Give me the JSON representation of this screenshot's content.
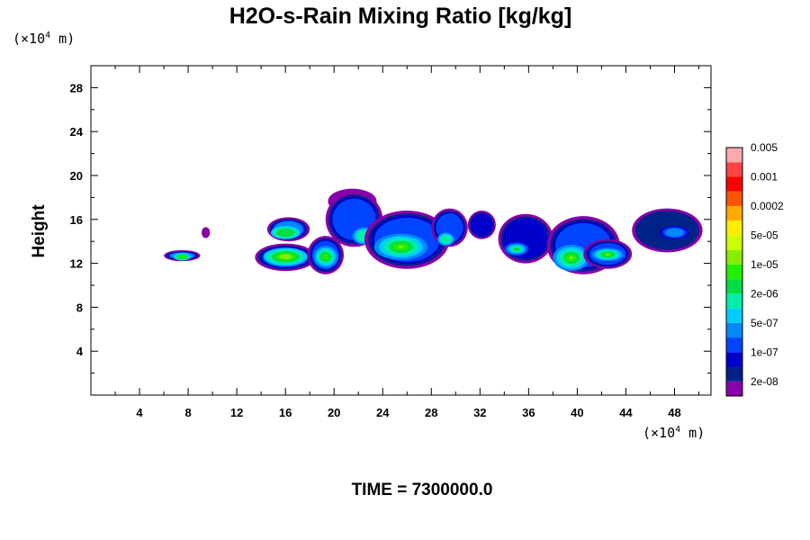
{
  "chart_data": {
    "type": "heatmap",
    "title": "H2O-s-Rain Mixing Ratio [kg/kg]",
    "ylabel": "Height",
    "x_units": "(×10⁴ m)",
    "y_units": "(×10⁴ m)",
    "x_unit_parts": {
      "prefix": "(×10",
      "exp": "4",
      "suffix": " m)"
    },
    "y_unit_parts": {
      "prefix": "(×10",
      "exp": "4",
      "suffix": " m)"
    },
    "xlim": [
      0,
      51
    ],
    "ylim": [
      0,
      30
    ],
    "x_ticks": [
      4,
      8,
      12,
      16,
      20,
      24,
      28,
      32,
      36,
      40,
      44,
      48
    ],
    "x_tick_labels": [
      "4",
      "8",
      "12",
      "16",
      "20",
      "24",
      "28",
      "32",
      "36",
      "40",
      "44",
      "48"
    ],
    "y_ticks": [
      4,
      8,
      12,
      16,
      20,
      24,
      28
    ],
    "y_tick_labels": [
      "4",
      "8",
      "12",
      "16",
      "20",
      "24",
      "28"
    ],
    "colorbar": {
      "colors": [
        "#8800aa",
        "#002288",
        "#0000cc",
        "#0044ff",
        "#0088ff",
        "#00ccff",
        "#00eeaa",
        "#00dd44",
        "#22ee00",
        "#88ee00",
        "#ccff00",
        "#ffee00",
        "#ffaa00",
        "#ff5500",
        "#ff0000",
        "#ff4444",
        "#ffaaaa"
      ],
      "labels": [
        "2e-08",
        "1e-07",
        "5e-07",
        "2e-06",
        "1e-05",
        "5e-05",
        "0.0002",
        "0.001",
        "0.005"
      ]
    },
    "cells": [
      {
        "x0": 6,
        "x1": 9,
        "y0": 12.2,
        "y1": 13.2,
        "level": 4,
        "core": [
          7.5,
          12.6,
          0.7,
          0.35,
          8
        ]
      },
      {
        "x0": 9.1,
        "x1": 9.8,
        "y0": 14.3,
        "y1": 15.3,
        "level": 0
      },
      {
        "x0": 14.5,
        "x1": 18,
        "y0": 14,
        "y1": 16.2,
        "level": 4,
        "core": [
          16,
          14.8,
          1.2,
          0.6,
          7
        ]
      },
      {
        "x0": 13.5,
        "x1": 18.5,
        "y0": 11.3,
        "y1": 13.8,
        "level": 4,
        "core": [
          16,
          12.6,
          1.8,
          0.8,
          9
        ]
      },
      {
        "x0": 17.8,
        "x1": 20.8,
        "y0": 11,
        "y1": 14.5,
        "level": 3,
        "core": [
          19.3,
          12.6,
          1.0,
          1.0,
          8
        ]
      },
      {
        "x0": 19.5,
        "x1": 23.5,
        "y0": 16.5,
        "y1": 18.8,
        "level": 0
      },
      {
        "x0": 19.3,
        "x1": 24,
        "y0": 13.5,
        "y1": 18.5,
        "level": 3,
        "core": [
          22.5,
          14.5,
          1.0,
          0.8,
          6
        ]
      },
      {
        "x0": 22.5,
        "x1": 29.5,
        "y0": 11.5,
        "y1": 16.8,
        "level": 3,
        "core": [
          25.5,
          13.5,
          2.2,
          1.2,
          9
        ]
      },
      {
        "x0": 28,
        "x1": 31,
        "y0": 13.5,
        "y1": 17,
        "level": 3,
        "core": [
          29.2,
          14.2,
          0.7,
          0.6,
          6
        ]
      },
      {
        "x0": 31,
        "x1": 33.3,
        "y0": 14.2,
        "y1": 16.8,
        "level": 2
      },
      {
        "x0": 33.5,
        "x1": 38,
        "y0": 12,
        "y1": 16.5,
        "level": 2,
        "core": [
          35,
          13.3,
          1.0,
          0.6,
          7
        ]
      },
      {
        "x0": 37.5,
        "x1": 43.5,
        "y0": 11,
        "y1": 16.3,
        "level": 3,
        "core": [
          39.5,
          12.5,
          1.5,
          1.2,
          9
        ]
      },
      {
        "x0": 40.5,
        "x1": 44.5,
        "y0": 11.5,
        "y1": 14.2,
        "level": 3,
        "core": [
          42.5,
          12.8,
          1.3,
          0.6,
          9
        ]
      },
      {
        "x0": 44.5,
        "x1": 50.3,
        "y0": 13,
        "y1": 17,
        "level": 1,
        "core": [
          48,
          14.8,
          1.2,
          0.6,
          4
        ]
      }
    ]
  },
  "time_label": "TIME = 7300000.0"
}
